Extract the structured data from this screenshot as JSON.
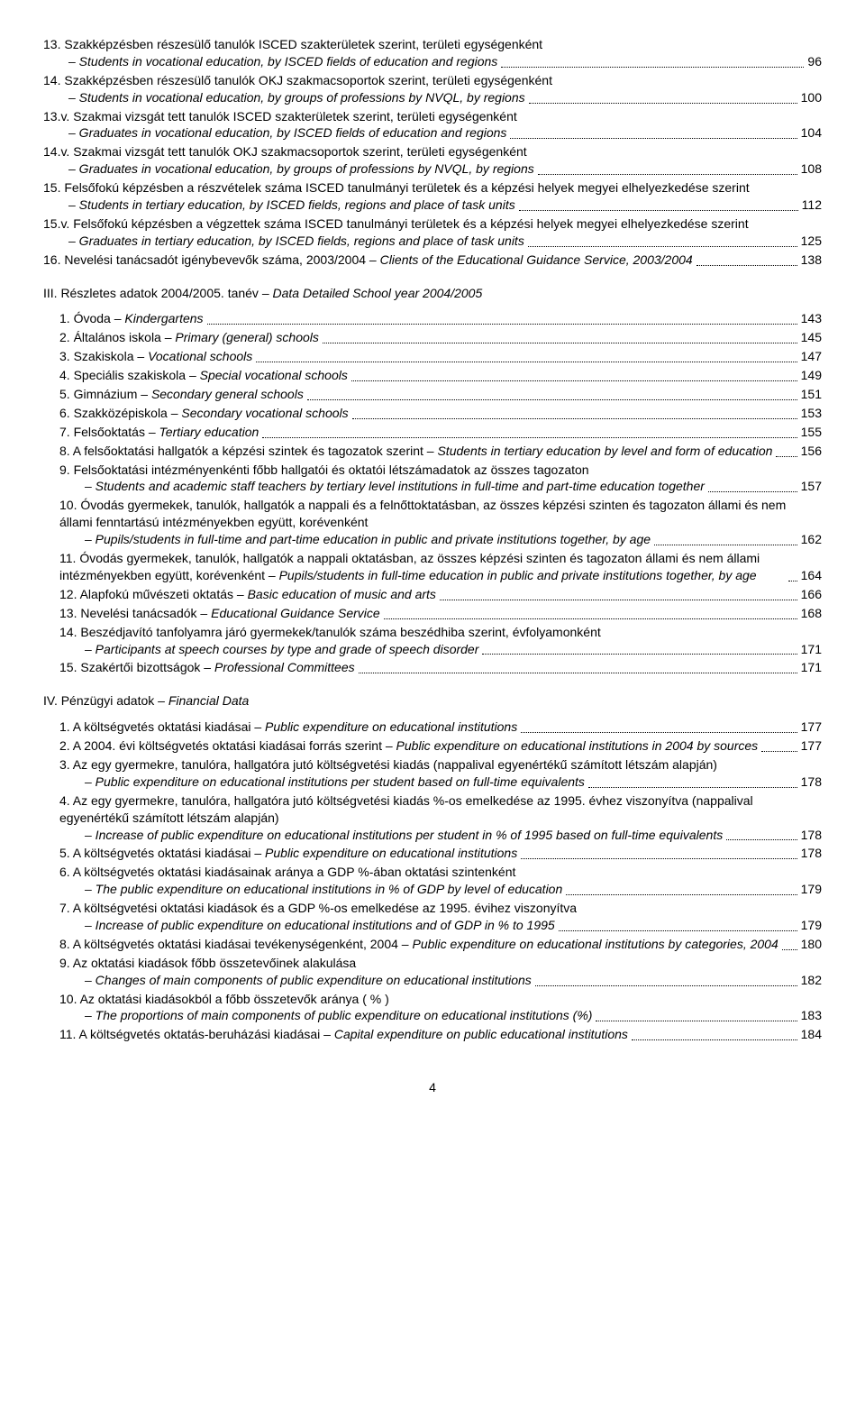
{
  "sectionA": [
    {
      "num": "13.",
      "hu": "Szakképzésben részesülő tanulók ISCED szakterületek szerint, területi egységenként",
      "en": "Students in vocational education, by ISCED fields of education and regions",
      "page": "96"
    },
    {
      "num": "14.",
      "hu": "Szakképzésben részesülő tanulók OKJ szakmacsoportok szerint, területi egységenként",
      "en": "Students in vocational education, by groups of professions by NVQL, by regions",
      "page": "100"
    },
    {
      "num": "13.v.",
      "hu": "Szakmai vizsgát tett tanulók ISCED szakterületek szerint, területi egységenként",
      "en": "Graduates in vocational education, by ISCED fields of education and regions",
      "page": "104"
    },
    {
      "num": "14.v.",
      "hu": "Szakmai vizsgát tett tanulók OKJ szakmacsoportok szerint, területi egységenként",
      "en": "Graduates in vocational education, by groups of professions by NVQL, by regions",
      "page": "108"
    },
    {
      "num": "15.",
      "hu": "Felsőfokú képzésben a részvételek száma ISCED tanulmányi területek és a képzési helyek megyei elhelyezkedése szerint",
      "en": "Students in tertiary education, by ISCED fields, regions and place of task units",
      "page": "112"
    },
    {
      "num": "15.v.",
      "hu": "Felsőfokú képzésben a végzettek száma ISCED tanulmányi területek és a képzési helyek megyei elhelyezkedése szerint",
      "en": "Graduates in tertiary education, by ISCED fields, regions and place of task units",
      "page": "125"
    },
    {
      "num": "16.",
      "hu": "Nevelési tanácsadót igénybevevők száma, 2003/2004 –",
      "en": "Clients of the Educational Guidance Service,  2003/2004",
      "page": "138",
      "inline": true
    }
  ],
  "sectionIII_head_hu": "III. Részletes adatok  2004/2005. tanév –",
  "sectionIII_head_en": "Data Detailed  School year 2004/2005",
  "sectionIII": [
    {
      "num": "1.",
      "hu": "Óvoda –",
      "en": "Kindergartens",
      "page": "143",
      "inline": true
    },
    {
      "num": "2.",
      "hu": "Általános iskola –",
      "en": "Primary (general) schools",
      "page": "145",
      "inline": true
    },
    {
      "num": "3.",
      "hu": "Szakiskola –",
      "en": "Vocational schools",
      "page": "147",
      "inline": true
    },
    {
      "num": "4.",
      "hu": "Speciális szakiskola –",
      "en": "Special vocational schools",
      "page": "149",
      "inline": true
    },
    {
      "num": "5.",
      "hu": "Gimnázium –",
      "en": "Secondary general schools",
      "page": "151",
      "inline": true
    },
    {
      "num": "6.",
      "hu": "Szakközépiskola –",
      "en": "Secondary vocational schools",
      "page": "153",
      "inline": true
    },
    {
      "num": "7.",
      "hu": "Felsőoktatás –",
      "en": "Tertiary education",
      "page": "155",
      "inline": true
    },
    {
      "num": "8.",
      "hu": "A felsőoktatási hallgatók a képzési szintek és tagozatok szerint –",
      "en": "Students in tertiary education by  level and form of education",
      "page": "156",
      "inlineWrap": true
    },
    {
      "num": "9.",
      "hu": "Felsőoktatási intézményenkénti főbb hallgatói és oktatói létszámadatok az összes tagozaton",
      "en": "Students and academic staff teachers by tertiary level institutions in full-time and part-time education together",
      "page": "157"
    },
    {
      "num": "10.",
      "hu": "Óvodás gyermekek, tanulók, hallgatók a nappali és a felnőttoktatásban, az összes képzési szinten és tagozaton állami és nem állami fenntartású intézményekben együtt, korévenként",
      "en": "Pupils/students in full-time and part-time education in public and private institutions together, by age",
      "page": "162"
    },
    {
      "num": "11.",
      "hu": "Óvodás gyermekek, tanulók, hallgatók a nappali oktatásban, az összes képzési szinten és tagozaton állami és nem állami intézményekben együtt, korévenként –",
      "en": "Pupils/students in full-time education in public and private institutions together, by age",
      "page": "164",
      "inlineWrap": true
    },
    {
      "num": "12.",
      "hu": "Alapfokú művészeti oktatás –",
      "en": "Basic education of music and arts",
      "page": "166",
      "inline": true
    },
    {
      "num": "13.",
      "hu": "Nevelési tanácsadók –",
      "en": "Educational Guidance Service",
      "page": "168",
      "inline": true
    },
    {
      "num": "14.",
      "hu": "Beszédjavító tanfolyamra járó gyermekek/tanulók száma beszédhiba szerint, évfolyamonként",
      "en": "Participants at speech courses by type and grade of speech disorder",
      "page": "171"
    },
    {
      "num": "15.",
      "hu": "Szakértői bizottságok –",
      "en": "Professional Committees",
      "page": "171",
      "inline": true
    }
  ],
  "sectionIV_head_hu": "IV. Pénzügyi adatok –",
  "sectionIV_head_en": "Financial Data",
  "sectionIV": [
    {
      "num": "1.",
      "hu": "A költségvetés oktatási kiadásai –",
      "en": "Public expenditure on educational institutions",
      "page": "177",
      "inline": true
    },
    {
      "num": "2.",
      "hu": "A 2004. évi költségvetés oktatási kiadásai forrás szerint –",
      "en": "Public expenditure on educational institutions in 2004 by sources",
      "page": "177",
      "inlineWrap": true
    },
    {
      "num": "3.",
      "hu": "Az egy gyermekre, tanulóra, hallgatóra jutó költségvetési kiadás (nappalival egyenértékű számított létszám alapján)",
      "en": "Public expenditure on educational institutions per student based on full-time equivalents",
      "page": "178"
    },
    {
      "num": "4.",
      "hu": "Az egy gyermekre, tanulóra, hallgatóra jutó költségvetési kiadás %-os emelkedése az 1995. évhez viszonyítva (nappalival egyenértékű számított létszám alapján)",
      "en": "Increase of public expenditure on educational institutions per student in % of 1995  based on full-time equivalents",
      "page": "178"
    },
    {
      "num": "5.",
      "hu": "A költségvetés oktatási kiadásai –",
      "en": "Public expenditure on educational institutions",
      "page": "178",
      "inline": true
    },
    {
      "num": "6.",
      "hu": "A költségvetés oktatási kiadásainak aránya a GDP %-ában oktatási szintenként",
      "en": "The public expenditure on educational institutions in % of GDP  by level of education",
      "page": "179"
    },
    {
      "num": "7.",
      "hu": "A költségvetési oktatási kiadások és a GDP %-os emelkedése az 1995. évihez viszonyítva",
      "en": "Increase of public expenditure on educational institutions and of GDP in % to 1995",
      "page": "179"
    },
    {
      "num": "8.",
      "hu": "A költségvetés oktatási kiadásai tevékenységenként, 2004 –",
      "en": "Public expenditure on educational institutions by categories, 2004",
      "page": "180",
      "inlineWrap": true
    },
    {
      "num": "9.",
      "hu": "Az oktatási kiadások főbb összetevőinek alakulása",
      "en": "Changes of main components of public expenditure on educational institutions",
      "page": "182"
    },
    {
      "num": "10.",
      "hu": "Az oktatási kiadásokból a főbb összetevők aránya ( % )",
      "en": "The proportions of main components of public expenditure on educational institutions (%)",
      "page": "183"
    },
    {
      "num": "11.",
      "hu": "A költségvetés oktatás-beruházási kiadásai –",
      "en": "Capital expenditure on public educational institutions",
      "page": "184",
      "inline": true
    }
  ],
  "pageNumber": "4"
}
